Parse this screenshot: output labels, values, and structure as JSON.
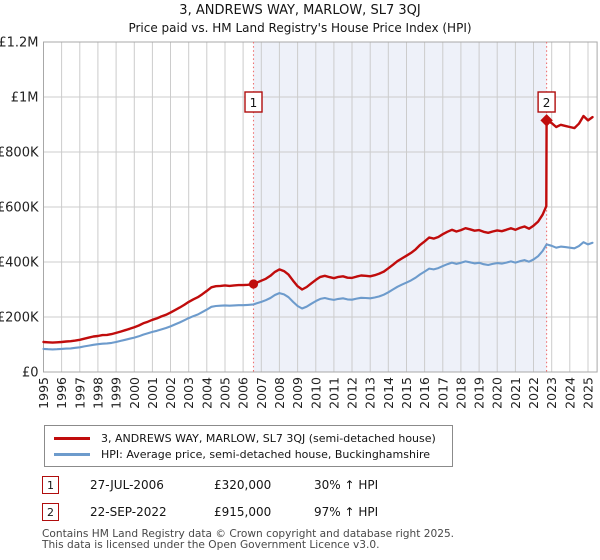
{
  "page": {
    "title": "3, ANDREWS WAY, MARLOW, SL7 3QJ",
    "subtitle": "Price paid vs. HM Land Registry's House Price Index (HPI)"
  },
  "chart_data": {
    "type": "line",
    "title": "3, ANDREWS WAY, MARLOW, SL7 3QJ",
    "subtitle": "Price paid vs. HM Land Registry's House Price Index (HPI)",
    "xlabel": "",
    "ylabel": "",
    "grid": true,
    "legend_position": "bottom",
    "x_axis": {
      "min": 1995,
      "max": 2025.5,
      "ticks": [
        1995,
        1996,
        1997,
        1998,
        1999,
        2000,
        2001,
        2002,
        2003,
        2004,
        2005,
        2006,
        2007,
        2008,
        2009,
        2010,
        2011,
        2012,
        2013,
        2014,
        2015,
        2016,
        2017,
        2018,
        2019,
        2020,
        2021,
        2022,
        2023,
        2024,
        2025
      ]
    },
    "y_axis": {
      "min": 0,
      "max": 1200000,
      "ticks": [
        {
          "value": 0,
          "label": "£0"
        },
        {
          "value": 200000,
          "label": "£200K"
        },
        {
          "value": 400000,
          "label": "£400K"
        },
        {
          "value": 600000,
          "label": "£600K"
        },
        {
          "value": 800000,
          "label": "£800K"
        },
        {
          "value": 1000000,
          "label": "£1M"
        },
        {
          "value": 1200000,
          "label": "£1.2M"
        }
      ]
    },
    "shaded_region": {
      "from_x": 2006.57,
      "to_x": 2022.72,
      "color": "#eef1f9"
    },
    "sale_markers": [
      {
        "label": "1",
        "x": 2006.57,
        "date": "27-JUL-2006",
        "value": 320000,
        "shape": "circle",
        "vs_hpi": "30% ↑ HPI"
      },
      {
        "label": "2",
        "x": 2022.72,
        "date": "22-SEP-2022",
        "value": 915000,
        "shape": "diamond",
        "vs_hpi": "97% ↑ HPI"
      }
    ],
    "series": [
      {
        "name": "3, ANDREWS WAY, MARLOW, SL7 3QJ (semi-detached house)",
        "color": "#c00c0c",
        "width": 2.4,
        "points": [
          [
            1995.0,
            109000
          ],
          [
            1995.25,
            108000
          ],
          [
            1995.5,
            107000
          ],
          [
            1995.75,
            108000
          ],
          [
            1996.0,
            109000
          ],
          [
            1996.25,
            111000
          ],
          [
            1996.5,
            112000
          ],
          [
            1996.75,
            114000
          ],
          [
            1997.0,
            117000
          ],
          [
            1997.25,
            121000
          ],
          [
            1997.5,
            125000
          ],
          [
            1997.75,
            129000
          ],
          [
            1998.0,
            131000
          ],
          [
            1998.25,
            134000
          ],
          [
            1998.5,
            135000
          ],
          [
            1998.75,
            138000
          ],
          [
            1999.0,
            142000
          ],
          [
            1999.25,
            147000
          ],
          [
            1999.5,
            152000
          ],
          [
            1999.75,
            157000
          ],
          [
            2000.0,
            163000
          ],
          [
            2000.25,
            169000
          ],
          [
            2000.5,
            177000
          ],
          [
            2000.75,
            183000
          ],
          [
            2001.0,
            190000
          ],
          [
            2001.25,
            195000
          ],
          [
            2001.5,
            202000
          ],
          [
            2001.75,
            208000
          ],
          [
            2002.0,
            216000
          ],
          [
            2002.25,
            225000
          ],
          [
            2002.5,
            234000
          ],
          [
            2002.75,
            244000
          ],
          [
            2003.0,
            255000
          ],
          [
            2003.25,
            264000
          ],
          [
            2003.5,
            272000
          ],
          [
            2003.75,
            283000
          ],
          [
            2004.0,
            295000
          ],
          [
            2004.25,
            308000
          ],
          [
            2004.5,
            312000
          ],
          [
            2004.75,
            313000
          ],
          [
            2005.0,
            315000
          ],
          [
            2005.25,
            313000
          ],
          [
            2005.5,
            315000
          ],
          [
            2005.75,
            316000
          ],
          [
            2006.0,
            316000
          ],
          [
            2006.25,
            317000
          ],
          [
            2006.57,
            320000
          ],
          [
            2006.75,
            325000
          ],
          [
            2007.0,
            332000
          ],
          [
            2007.25,
            339000
          ],
          [
            2007.5,
            350000
          ],
          [
            2007.75,
            364000
          ],
          [
            2008.0,
            373000
          ],
          [
            2008.25,
            367000
          ],
          [
            2008.5,
            354000
          ],
          [
            2008.75,
            332000
          ],
          [
            2009.0,
            312000
          ],
          [
            2009.25,
            300000
          ],
          [
            2009.5,
            309000
          ],
          [
            2009.75,
            322000
          ],
          [
            2010.0,
            335000
          ],
          [
            2010.25,
            346000
          ],
          [
            2010.5,
            350000
          ],
          [
            2010.75,
            345000
          ],
          [
            2011.0,
            341000
          ],
          [
            2011.25,
            346000
          ],
          [
            2011.5,
            348000
          ],
          [
            2011.75,
            343000
          ],
          [
            2012.0,
            342000
          ],
          [
            2012.25,
            347000
          ],
          [
            2012.5,
            351000
          ],
          [
            2012.75,
            350000
          ],
          [
            2013.0,
            348000
          ],
          [
            2013.25,
            352000
          ],
          [
            2013.5,
            358000
          ],
          [
            2013.75,
            365000
          ],
          [
            2014.0,
            377000
          ],
          [
            2014.25,
            390000
          ],
          [
            2014.5,
            403000
          ],
          [
            2014.75,
            413000
          ],
          [
            2015.0,
            423000
          ],
          [
            2015.25,
            433000
          ],
          [
            2015.5,
            446000
          ],
          [
            2015.75,
            462000
          ],
          [
            2016.0,
            475000
          ],
          [
            2016.25,
            489000
          ],
          [
            2016.5,
            485000
          ],
          [
            2016.75,
            491000
          ],
          [
            2017.0,
            501000
          ],
          [
            2017.25,
            510000
          ],
          [
            2017.5,
            517000
          ],
          [
            2017.75,
            511000
          ],
          [
            2018.0,
            516000
          ],
          [
            2018.25,
            523000
          ],
          [
            2018.5,
            519000
          ],
          [
            2018.75,
            514000
          ],
          [
            2019.0,
            516000
          ],
          [
            2019.25,
            510000
          ],
          [
            2019.5,
            506000
          ],
          [
            2019.75,
            511000
          ],
          [
            2020.0,
            515000
          ],
          [
            2020.25,
            512000
          ],
          [
            2020.5,
            517000
          ],
          [
            2020.75,
            523000
          ],
          [
            2021.0,
            517000
          ],
          [
            2021.25,
            524000
          ],
          [
            2021.5,
            529000
          ],
          [
            2021.75,
            521000
          ],
          [
            2022.0,
            532000
          ],
          [
            2022.25,
            547000
          ],
          [
            2022.5,
            572000
          ],
          [
            2022.7,
            603000
          ],
          [
            2022.72,
            915000
          ],
          [
            2023.0,
            905000
          ],
          [
            2023.25,
            891000
          ],
          [
            2023.5,
            899000
          ],
          [
            2023.75,
            895000
          ],
          [
            2024.0,
            891000
          ],
          [
            2024.25,
            887000
          ],
          [
            2024.5,
            903000
          ],
          [
            2024.75,
            931000
          ],
          [
            2025.0,
            915000
          ],
          [
            2025.25,
            927000
          ]
        ]
      },
      {
        "name": "HPI: Average price, semi-detached house, Buckinghamshire",
        "color": "#6d9bcc",
        "width": 2.1,
        "points": [
          [
            1995.0,
            84000
          ],
          [
            1995.25,
            83000
          ],
          [
            1995.5,
            82000
          ],
          [
            1995.75,
            83000
          ],
          [
            1996.0,
            84000
          ],
          [
            1996.25,
            85000
          ],
          [
            1996.5,
            86000
          ],
          [
            1996.75,
            88000
          ],
          [
            1997.0,
            90000
          ],
          [
            1997.25,
            93000
          ],
          [
            1997.5,
            96000
          ],
          [
            1997.75,
            99000
          ],
          [
            1998.0,
            101000
          ],
          [
            1998.25,
            103000
          ],
          [
            1998.5,
            104000
          ],
          [
            1998.75,
            106000
          ],
          [
            1999.0,
            109000
          ],
          [
            1999.25,
            113000
          ],
          [
            1999.5,
            117000
          ],
          [
            1999.75,
            121000
          ],
          [
            2000.0,
            125000
          ],
          [
            2000.25,
            130000
          ],
          [
            2000.5,
            136000
          ],
          [
            2000.75,
            141000
          ],
          [
            2001.0,
            146000
          ],
          [
            2001.25,
            150000
          ],
          [
            2001.5,
            155000
          ],
          [
            2001.75,
            160000
          ],
          [
            2002.0,
            166000
          ],
          [
            2002.25,
            173000
          ],
          [
            2002.5,
            180000
          ],
          [
            2002.75,
            188000
          ],
          [
            2003.0,
            196000
          ],
          [
            2003.25,
            203000
          ],
          [
            2003.5,
            209000
          ],
          [
            2003.75,
            218000
          ],
          [
            2004.0,
            227000
          ],
          [
            2004.25,
            237000
          ],
          [
            2004.5,
            240000
          ],
          [
            2004.75,
            241000
          ],
          [
            2005.0,
            242000
          ],
          [
            2005.25,
            241000
          ],
          [
            2005.5,
            242000
          ],
          [
            2005.75,
            243000
          ],
          [
            2006.0,
            243000
          ],
          [
            2006.25,
            244000
          ],
          [
            2006.57,
            246000
          ],
          [
            2006.75,
            250000
          ],
          [
            2007.0,
            255000
          ],
          [
            2007.25,
            261000
          ],
          [
            2007.5,
            269000
          ],
          [
            2007.75,
            280000
          ],
          [
            2008.0,
            287000
          ],
          [
            2008.25,
            282000
          ],
          [
            2008.5,
            272000
          ],
          [
            2008.75,
            255000
          ],
          [
            2009.0,
            240000
          ],
          [
            2009.25,
            231000
          ],
          [
            2009.5,
            238000
          ],
          [
            2009.75,
            248000
          ],
          [
            2010.0,
            258000
          ],
          [
            2010.25,
            266000
          ],
          [
            2010.5,
            269000
          ],
          [
            2010.75,
            265000
          ],
          [
            2011.0,
            262000
          ],
          [
            2011.25,
            266000
          ],
          [
            2011.5,
            268000
          ],
          [
            2011.75,
            264000
          ],
          [
            2012.0,
            263000
          ],
          [
            2012.25,
            267000
          ],
          [
            2012.5,
            270000
          ],
          [
            2012.75,
            269000
          ],
          [
            2013.0,
            268000
          ],
          [
            2013.25,
            271000
          ],
          [
            2013.5,
            275000
          ],
          [
            2013.75,
            281000
          ],
          [
            2014.0,
            290000
          ],
          [
            2014.25,
            300000
          ],
          [
            2014.5,
            310000
          ],
          [
            2014.75,
            318000
          ],
          [
            2015.0,
            325000
          ],
          [
            2015.25,
            333000
          ],
          [
            2015.5,
            343000
          ],
          [
            2015.75,
            355000
          ],
          [
            2016.0,
            365000
          ],
          [
            2016.25,
            376000
          ],
          [
            2016.5,
            373000
          ],
          [
            2016.75,
            378000
          ],
          [
            2017.0,
            385000
          ],
          [
            2017.25,
            392000
          ],
          [
            2017.5,
            398000
          ],
          [
            2017.75,
            393000
          ],
          [
            2018.0,
            397000
          ],
          [
            2018.25,
            402000
          ],
          [
            2018.5,
            399000
          ],
          [
            2018.75,
            395000
          ],
          [
            2019.0,
            397000
          ],
          [
            2019.25,
            392000
          ],
          [
            2019.5,
            389000
          ],
          [
            2019.75,
            393000
          ],
          [
            2020.0,
            396000
          ],
          [
            2020.25,
            394000
          ],
          [
            2020.5,
            398000
          ],
          [
            2020.75,
            402000
          ],
          [
            2021.0,
            398000
          ],
          [
            2021.25,
            403000
          ],
          [
            2021.5,
            407000
          ],
          [
            2021.75,
            401000
          ],
          [
            2022.0,
            409000
          ],
          [
            2022.25,
            421000
          ],
          [
            2022.5,
            440000
          ],
          [
            2022.72,
            464000
          ],
          [
            2023.0,
            459000
          ],
          [
            2023.25,
            452000
          ],
          [
            2023.5,
            456000
          ],
          [
            2023.75,
            454000
          ],
          [
            2024.0,
            452000
          ],
          [
            2024.25,
            450000
          ],
          [
            2024.5,
            458000
          ],
          [
            2024.75,
            472000
          ],
          [
            2025.0,
            464000
          ],
          [
            2025.25,
            470000
          ]
        ]
      }
    ],
    "colors": {
      "grid": "#cccccc",
      "plot_border": "#a8a8a8",
      "dashed_sale_line": "#ee7272",
      "marker_fill": "#c00c0c",
      "marker_box_border": "#b00d0d"
    }
  },
  "legend": {
    "items": [
      {
        "label": "3, ANDREWS WAY, MARLOW, SL7 3QJ (semi-detached house)",
        "color": "#c00c0c"
      },
      {
        "label": "HPI: Average price, semi-detached house, Buckinghamshire",
        "color": "#6d9bcc"
      }
    ]
  },
  "annotations": [
    {
      "num": "1",
      "date": "27-JUL-2006",
      "price": "£320,000",
      "vs_hpi": "30% ↑ HPI"
    },
    {
      "num": "2",
      "date": "22-SEP-2022",
      "price": "£915,000",
      "vs_hpi": "97% ↑ HPI"
    }
  ],
  "footer": {
    "line1": "Contains HM Land Registry data © Crown copyright and database right 2025.",
    "line2": "This data is licensed under the Open Government Licence v3.0."
  }
}
